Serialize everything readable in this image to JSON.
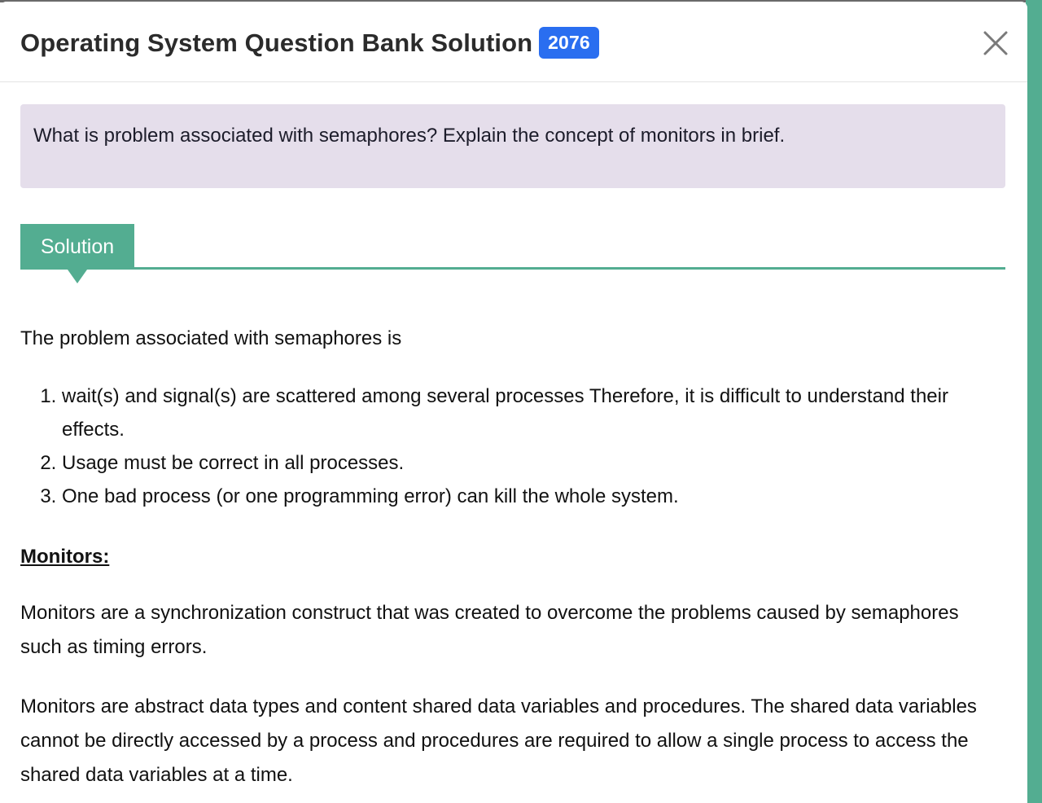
{
  "header": {
    "title": "Operating System Question Bank Solution",
    "year_badge": "2076",
    "close_icon": "close-icon"
  },
  "question": {
    "text": "What is problem associated with semaphores? Explain the concept of monitors in brief."
  },
  "solution_tab": {
    "label": "Solution"
  },
  "answer": {
    "intro": "The problem associated with semaphores is",
    "problems": [
      "wait(s) and signal(s) are scattered among several processes Therefore, it is difficult to understand their effects.",
      "Usage must be correct in all processes.",
      "One bad process (or one programming error) can kill the whole system."
    ],
    "monitors_heading": "Monitors:",
    "monitors_para_1": "Monitors are a synchronization construct that was created to overcome the problems caused by semaphores such as timing errors.",
    "monitors_para_2": "Monitors are abstract data types and content shared data variables and procedures. The shared data variables cannot be directly accessed by a process and procedures are required to allow a single process to access the shared data variables at a time."
  },
  "colors": {
    "accent": "#53ad91",
    "badge": "#2a6ef0",
    "question_bg": "#e5deeb",
    "title_text": "#2b2b2b"
  }
}
